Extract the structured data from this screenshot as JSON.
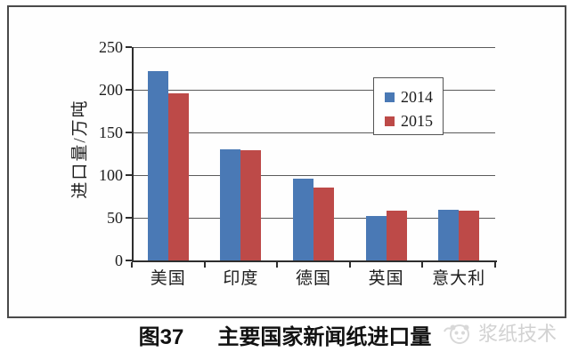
{
  "figure": {
    "caption_label": "图37",
    "caption_title": "主要国家新闻纸进口量"
  },
  "watermark": {
    "icon": "panda-logo-icon",
    "text": "浆纸技术"
  },
  "colors": {
    "bar_2014": "#4a79b5",
    "bar_2015": "#bd4a48",
    "gridline": "#5a5a5a",
    "axis": "#2e2e2e",
    "frame_border": "#4a4a4a",
    "legend_border": "#555555",
    "caption_text": "#111111",
    "watermark_text": "#d2d2d2",
    "background": "#ffffff"
  },
  "chart_data": {
    "type": "bar",
    "categories": [
      "美国",
      "印度",
      "德国",
      "英国",
      "意大利"
    ],
    "series": [
      {
        "name": "2014",
        "color": "#4a79b5",
        "values": [
          222,
          130,
          96,
          52,
          59
        ]
      },
      {
        "name": "2015",
        "color": "#bd4a48",
        "values": [
          196,
          129,
          85,
          58,
          58
        ]
      }
    ],
    "title": "图37 主要国家新闻纸进口量",
    "xlabel": "",
    "ylabel": "进口量/万吨",
    "ylim": [
      0,
      250
    ],
    "yticks": [
      0,
      50,
      100,
      150,
      200,
      250
    ],
    "grid": true,
    "legend_position": "inside-upper-right"
  }
}
